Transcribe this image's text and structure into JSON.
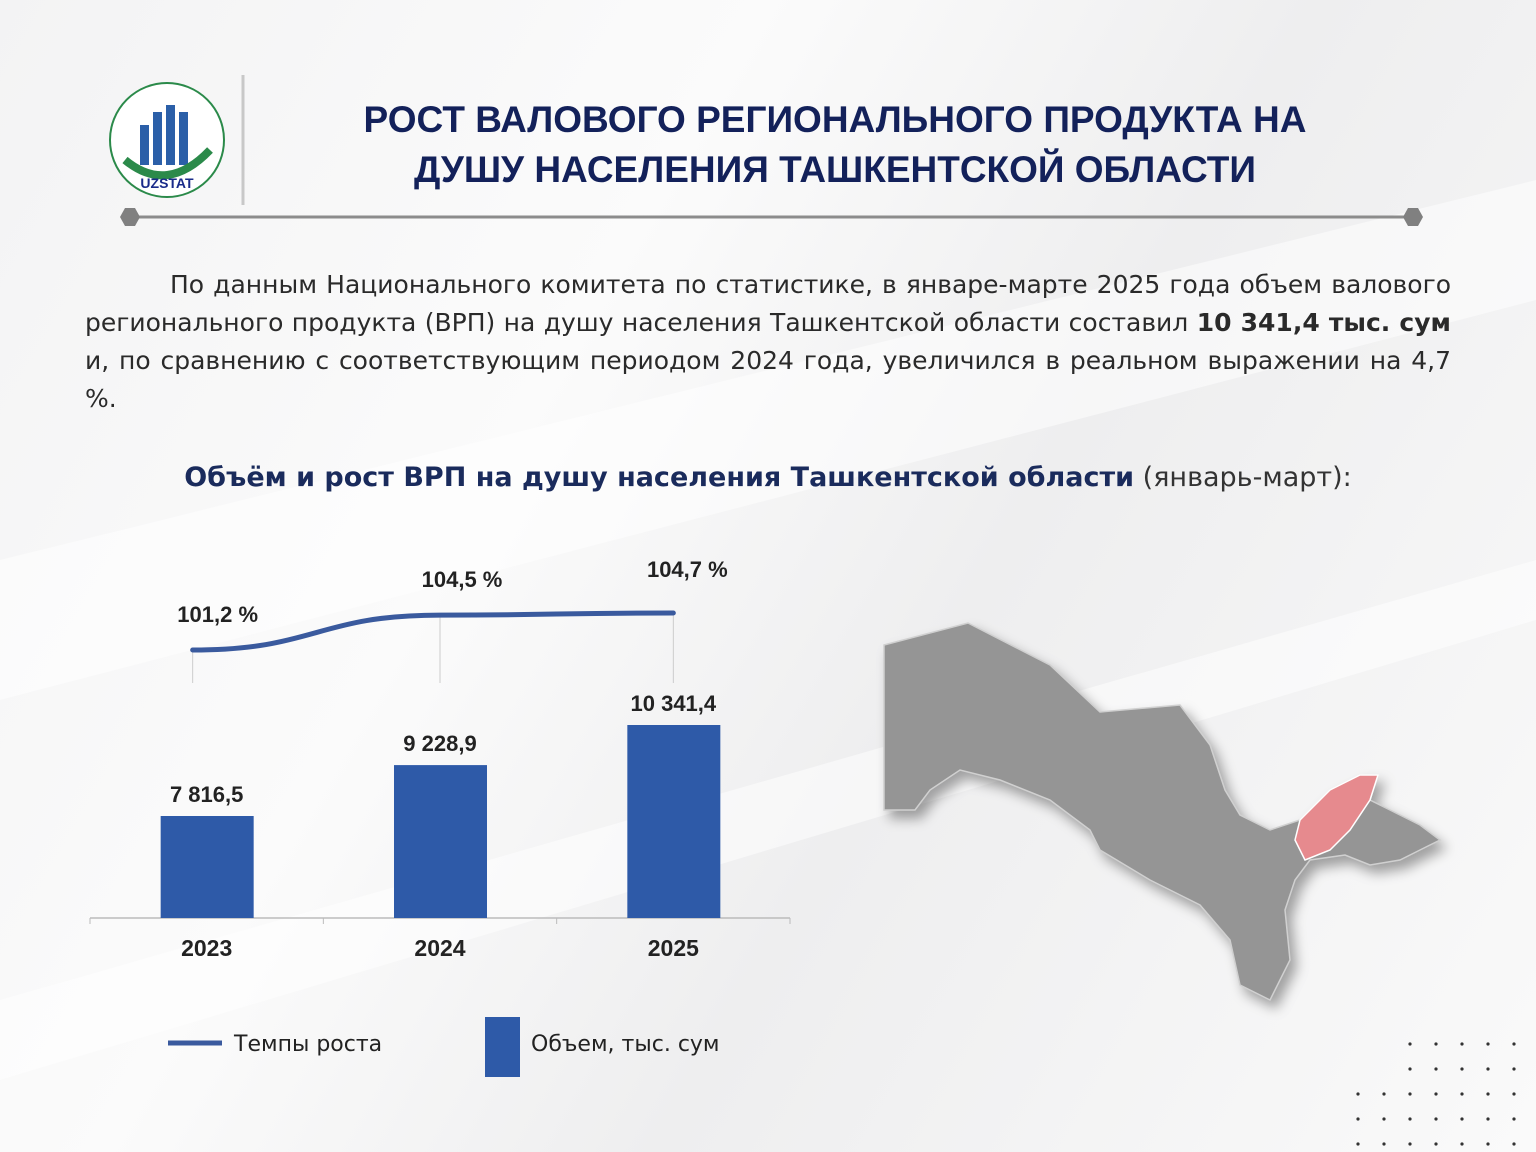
{
  "header": {
    "logo_text": "UZSTAT",
    "title_lines": [
      "РОСТ ВАЛОВОГО РЕГИОНАЛЬНОГО ПРОДУКТА НА",
      "ДУШУ НАСЕЛЕНИЯ ТАШКЕНТСКОЙ ОБЛАСТИ"
    ]
  },
  "paragraph": {
    "before": "По данным Национального комитета по статистике, в январе-марте 2025 года объем валового регионального продукта (ВРП) на душу населения Ташкентской области составил ",
    "bold": "10 341,4 тыс. сум",
    "after": " и, по сравнению с соответствующим периодом 2024 года, увеличился в реальном выражении на 4,7 %."
  },
  "subtitle": {
    "bold": "Объём и рост ВРП на душу населения Ташкентской области",
    "normal": " (январь-март):"
  },
  "chart_data": {
    "type": "bar",
    "categories": [
      "2023",
      "2024",
      "2025"
    ],
    "series": [
      {
        "name": "Объем, тыс. сум",
        "type": "bar",
        "color": "#2e5aa8",
        "values": [
          7816.5,
          9228.9,
          10341.4
        ],
        "value_labels": [
          "7 816,5",
          "9 228,9",
          "10 341,4"
        ]
      },
      {
        "name": "Темпы роста",
        "type": "line",
        "color": "#3a5a9e",
        "values": [
          101.2,
          104.5,
          104.7
        ],
        "value_labels": [
          "101,2 %",
          "104,5 %",
          "104,7 %"
        ]
      }
    ]
  }
}
